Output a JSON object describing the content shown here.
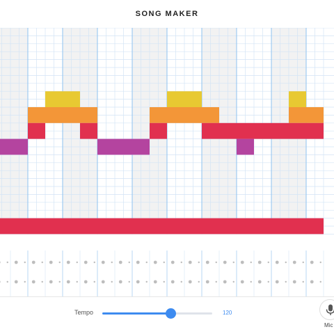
{
  "app": {
    "title": "SONG MAKER"
  },
  "grid": {
    "columns": 19,
    "rows": 13,
    "beats_per_bar": 2,
    "beat_shading": [
      "#f2f2f2",
      "#ffffff"
    ]
  },
  "notes": [
    {
      "row": 4,
      "col": 3,
      "color": "#e8c932"
    },
    {
      "row": 4,
      "col": 4,
      "color": "#e8c932"
    },
    {
      "row": 4,
      "col": 10,
      "color": "#e8c932"
    },
    {
      "row": 4,
      "col": 11,
      "color": "#e8c932"
    },
    {
      "row": 4,
      "col": 17,
      "color": "#e8c932"
    },
    {
      "row": 5,
      "col": 2,
      "color": "#f39638"
    },
    {
      "row": 5,
      "col": 3,
      "color": "#f39638"
    },
    {
      "row": 5,
      "col": 4,
      "color": "#f39638"
    },
    {
      "row": 5,
      "col": 5,
      "color": "#f39638"
    },
    {
      "row": 5,
      "col": 9,
      "color": "#f39638"
    },
    {
      "row": 5,
      "col": 10,
      "color": "#f39638"
    },
    {
      "row": 5,
      "col": 11,
      "color": "#f39638"
    },
    {
      "row": 5,
      "col": 12,
      "color": "#f39638"
    },
    {
      "row": 5,
      "col": 17,
      "color": "#f39638"
    },
    {
      "row": 5,
      "col": 18,
      "color": "#f39638"
    },
    {
      "row": 6,
      "col": 2,
      "color": "#e1304f"
    },
    {
      "row": 6,
      "col": 5,
      "color": "#e1304f"
    },
    {
      "row": 6,
      "col": 9,
      "color": "#e1304f"
    },
    {
      "row": 6,
      "col": 12,
      "color": "#e1304f"
    },
    {
      "row": 6,
      "col": 13,
      "color": "#e1304f"
    },
    {
      "row": 6,
      "col": 14,
      "color": "#e1304f"
    },
    {
      "row": 6,
      "col": 15,
      "color": "#e1304f"
    },
    {
      "row": 6,
      "col": 16,
      "color": "#e1304f"
    },
    {
      "row": 6,
      "col": 17,
      "color": "#e1304f"
    },
    {
      "row": 6,
      "col": 18,
      "color": "#e1304f"
    },
    {
      "row": 7,
      "col": 0,
      "color": "#b4449f"
    },
    {
      "row": 7,
      "col": 1,
      "color": "#b4449f"
    },
    {
      "row": 7,
      "col": 6,
      "color": "#b4449f"
    },
    {
      "row": 7,
      "col": 7,
      "color": "#b4449f"
    },
    {
      "row": 7,
      "col": 8,
      "color": "#b4449f"
    },
    {
      "row": 7,
      "col": 14,
      "color": "#b4449f"
    },
    {
      "row": 12,
      "col": 0,
      "color": "#e1304f"
    },
    {
      "row": 12,
      "col": 1,
      "color": "#e1304f"
    },
    {
      "row": 12,
      "col": 2,
      "color": "#e1304f"
    },
    {
      "row": 12,
      "col": 3,
      "color": "#e1304f"
    },
    {
      "row": 12,
      "col": 4,
      "color": "#e1304f"
    },
    {
      "row": 12,
      "col": 5,
      "color": "#e1304f"
    },
    {
      "row": 12,
      "col": 6,
      "color": "#e1304f"
    },
    {
      "row": 12,
      "col": 7,
      "color": "#e1304f"
    },
    {
      "row": 12,
      "col": 8,
      "color": "#e1304f"
    },
    {
      "row": 12,
      "col": 9,
      "color": "#e1304f"
    },
    {
      "row": 12,
      "col": 10,
      "color": "#e1304f"
    },
    {
      "row": 12,
      "col": 11,
      "color": "#e1304f"
    },
    {
      "row": 12,
      "col": 12,
      "color": "#e1304f"
    },
    {
      "row": 12,
      "col": 13,
      "color": "#e1304f"
    },
    {
      "row": 12,
      "col": 14,
      "color": "#e1304f"
    },
    {
      "row": 12,
      "col": 15,
      "color": "#e1304f"
    },
    {
      "row": 12,
      "col": 16,
      "color": "#e1304f"
    },
    {
      "row": 12,
      "col": 17,
      "color": "#e1304f"
    },
    {
      "row": 12,
      "col": 18,
      "color": "#e1304f"
    }
  ],
  "percussion": {
    "rows": 2,
    "dot_color": "#bdbdbd"
  },
  "colors": {
    "grid_line": "#d3e4f6",
    "bar_line": "#8fc3f0",
    "accent": "#3d8bf0"
  },
  "controls": {
    "tempo_label": "Tempo",
    "tempo_value": "120",
    "tempo_min": 60,
    "tempo_max": 150,
    "tempo_fraction": 0.62,
    "mic_label": "Mic",
    "mic_icon": "microphone-icon"
  }
}
